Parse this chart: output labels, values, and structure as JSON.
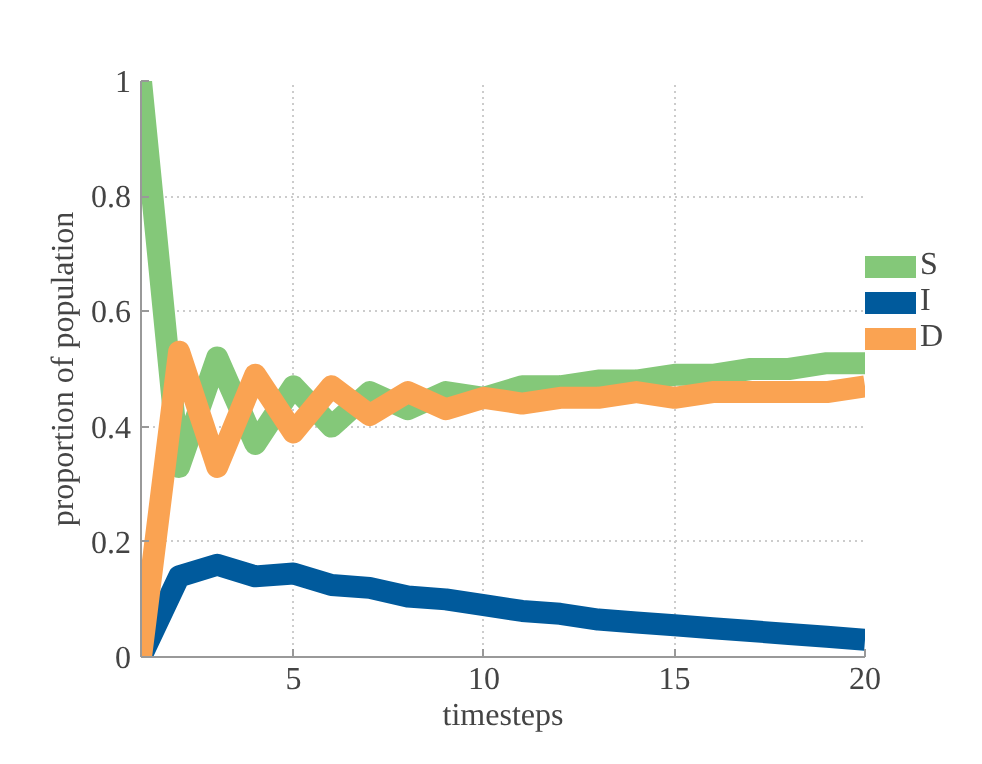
{
  "chart_data": {
    "type": "line",
    "xlabel": "timesteps",
    "ylabel": "proportion of population",
    "x": [
      1,
      2,
      3,
      4,
      5,
      6,
      7,
      8,
      9,
      10,
      11,
      12,
      13,
      14,
      15,
      16,
      17,
      18,
      19,
      20
    ],
    "series": [
      {
        "name": "S",
        "color": "#84c879",
        "values": [
          1,
          0.33,
          0.52,
          0.37,
          0.47,
          0.4,
          0.46,
          0.43,
          0.46,
          0.45,
          0.47,
          0.47,
          0.48,
          0.48,
          0.49,
          0.49,
          0.5,
          0.5,
          0.51,
          0.51
        ]
      },
      {
        "name": "I",
        "color": "#005a9c",
        "values": [
          0,
          0.14,
          0.16,
          0.14,
          0.145,
          0.125,
          0.12,
          0.105,
          0.1,
          0.09,
          0.08,
          0.075,
          0.065,
          0.06,
          0.055,
          0.05,
          0.045,
          0.04,
          0.035,
          0.03
        ]
      },
      {
        "name": "D",
        "color": "#faa352",
        "values": [
          0,
          0.53,
          0.33,
          0.49,
          0.39,
          0.47,
          0.42,
          0.46,
          0.43,
          0.45,
          0.44,
          0.45,
          0.45,
          0.46,
          0.45,
          0.46,
          0.46,
          0.46,
          0.46,
          0.47
        ]
      }
    ],
    "xlim": [
      1,
      20
    ],
    "xticks": [
      5,
      10,
      15,
      20
    ],
    "ylim": [
      0,
      1
    ],
    "yticks": [
      0,
      0.2,
      0.4,
      0.6,
      0.8,
      1
    ],
    "grid": true,
    "legend": "right",
    "line_style": "solid",
    "marker": "none"
  }
}
